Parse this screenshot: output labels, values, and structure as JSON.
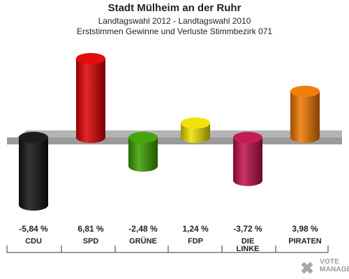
{
  "header": {
    "title": "Stadt Mülheim an der Ruhr",
    "subtitle1": "Landtagswahl 2012 - Landtagswahl 2010",
    "subtitle2": "Erststimmen Gewinne und Verluste Stimmbezirk 071"
  },
  "watermark": {
    "line1": "VOTE",
    "line2": "MANAGER"
  },
  "chart_data": {
    "type": "bar",
    "title": "Stadt Mülheim an der Ruhr",
    "subtitle": [
      "Landtagswahl 2012 - Landtagswahl 2010",
      "Erststimmen Gewinne und Verluste Stimmbezirk 071"
    ],
    "categories": [
      "CDU",
      "SPD",
      "GRÜNE",
      "FDP",
      "DIE LINKE",
      "PIRATEN"
    ],
    "values": [
      -5.84,
      6.81,
      -2.48,
      1.24,
      -3.72,
      3.98
    ],
    "labels": [
      "-5,84 %",
      "6,81 %",
      "-2,48 %",
      "1,24 %",
      "-3,72 %",
      "3,98 %"
    ],
    "colors": [
      "#111111",
      "#e00000",
      "#3aa000",
      "#f0e000",
      "#c0104a",
      "#f07800"
    ],
    "grid": false,
    "legend": "none"
  }
}
